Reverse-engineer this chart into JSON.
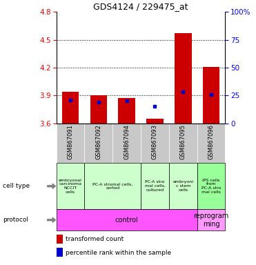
{
  "title": "GDS4124 / 229475_at",
  "samples": [
    "GSM867091",
    "GSM867092",
    "GSM867094",
    "GSM867093",
    "GSM867095",
    "GSM867096"
  ],
  "transformed_counts": [
    3.94,
    3.9,
    3.87,
    3.65,
    4.57,
    4.21
  ],
  "percentile_ranks": [
    20.5,
    19.0,
    20.0,
    15.5,
    28.0,
    25.5
  ],
  "ylim_left": [
    3.6,
    4.8
  ],
  "ylim_right": [
    0,
    100
  ],
  "yticks_left": [
    3.6,
    3.9,
    4.2,
    4.5,
    4.8
  ],
  "yticks_right": [
    0,
    25,
    50,
    75,
    100
  ],
  "bar_bottom": 3.6,
  "bar_color": "#cc0000",
  "dot_color": "#0000cc",
  "ct_spans": [
    {
      "start": 0,
      "end": 0,
      "label": "embryonal\ncarcinoma\nNCCIT\ncells",
      "color": "#ccffcc"
    },
    {
      "start": 1,
      "end": 2,
      "label": "PC-A stromal cells,\nsorted",
      "color": "#ccffcc"
    },
    {
      "start": 3,
      "end": 3,
      "label": "PC-A stro\nmal cells,\ncultured",
      "color": "#ccffcc"
    },
    {
      "start": 4,
      "end": 4,
      "label": "embryoni\nc stem\ncells",
      "color": "#ccffcc"
    },
    {
      "start": 5,
      "end": 5,
      "label": "iPS cells\nfrom\nPC-A stro\nmal cells",
      "color": "#99ff99"
    }
  ],
  "prot_spans": [
    {
      "start": 0,
      "end": 4,
      "label": "control",
      "color": "#ff55ff"
    },
    {
      "start": 5,
      "end": 5,
      "label": "reprogram\nming",
      "color": "#ff99ff"
    }
  ],
  "legend_items": [
    {
      "color": "#cc0000",
      "label": "transformed count"
    },
    {
      "color": "#0000cc",
      "label": "percentile rank within the sample"
    }
  ],
  "bar_width": 0.6,
  "sample_box_color": "#c8c8c8"
}
